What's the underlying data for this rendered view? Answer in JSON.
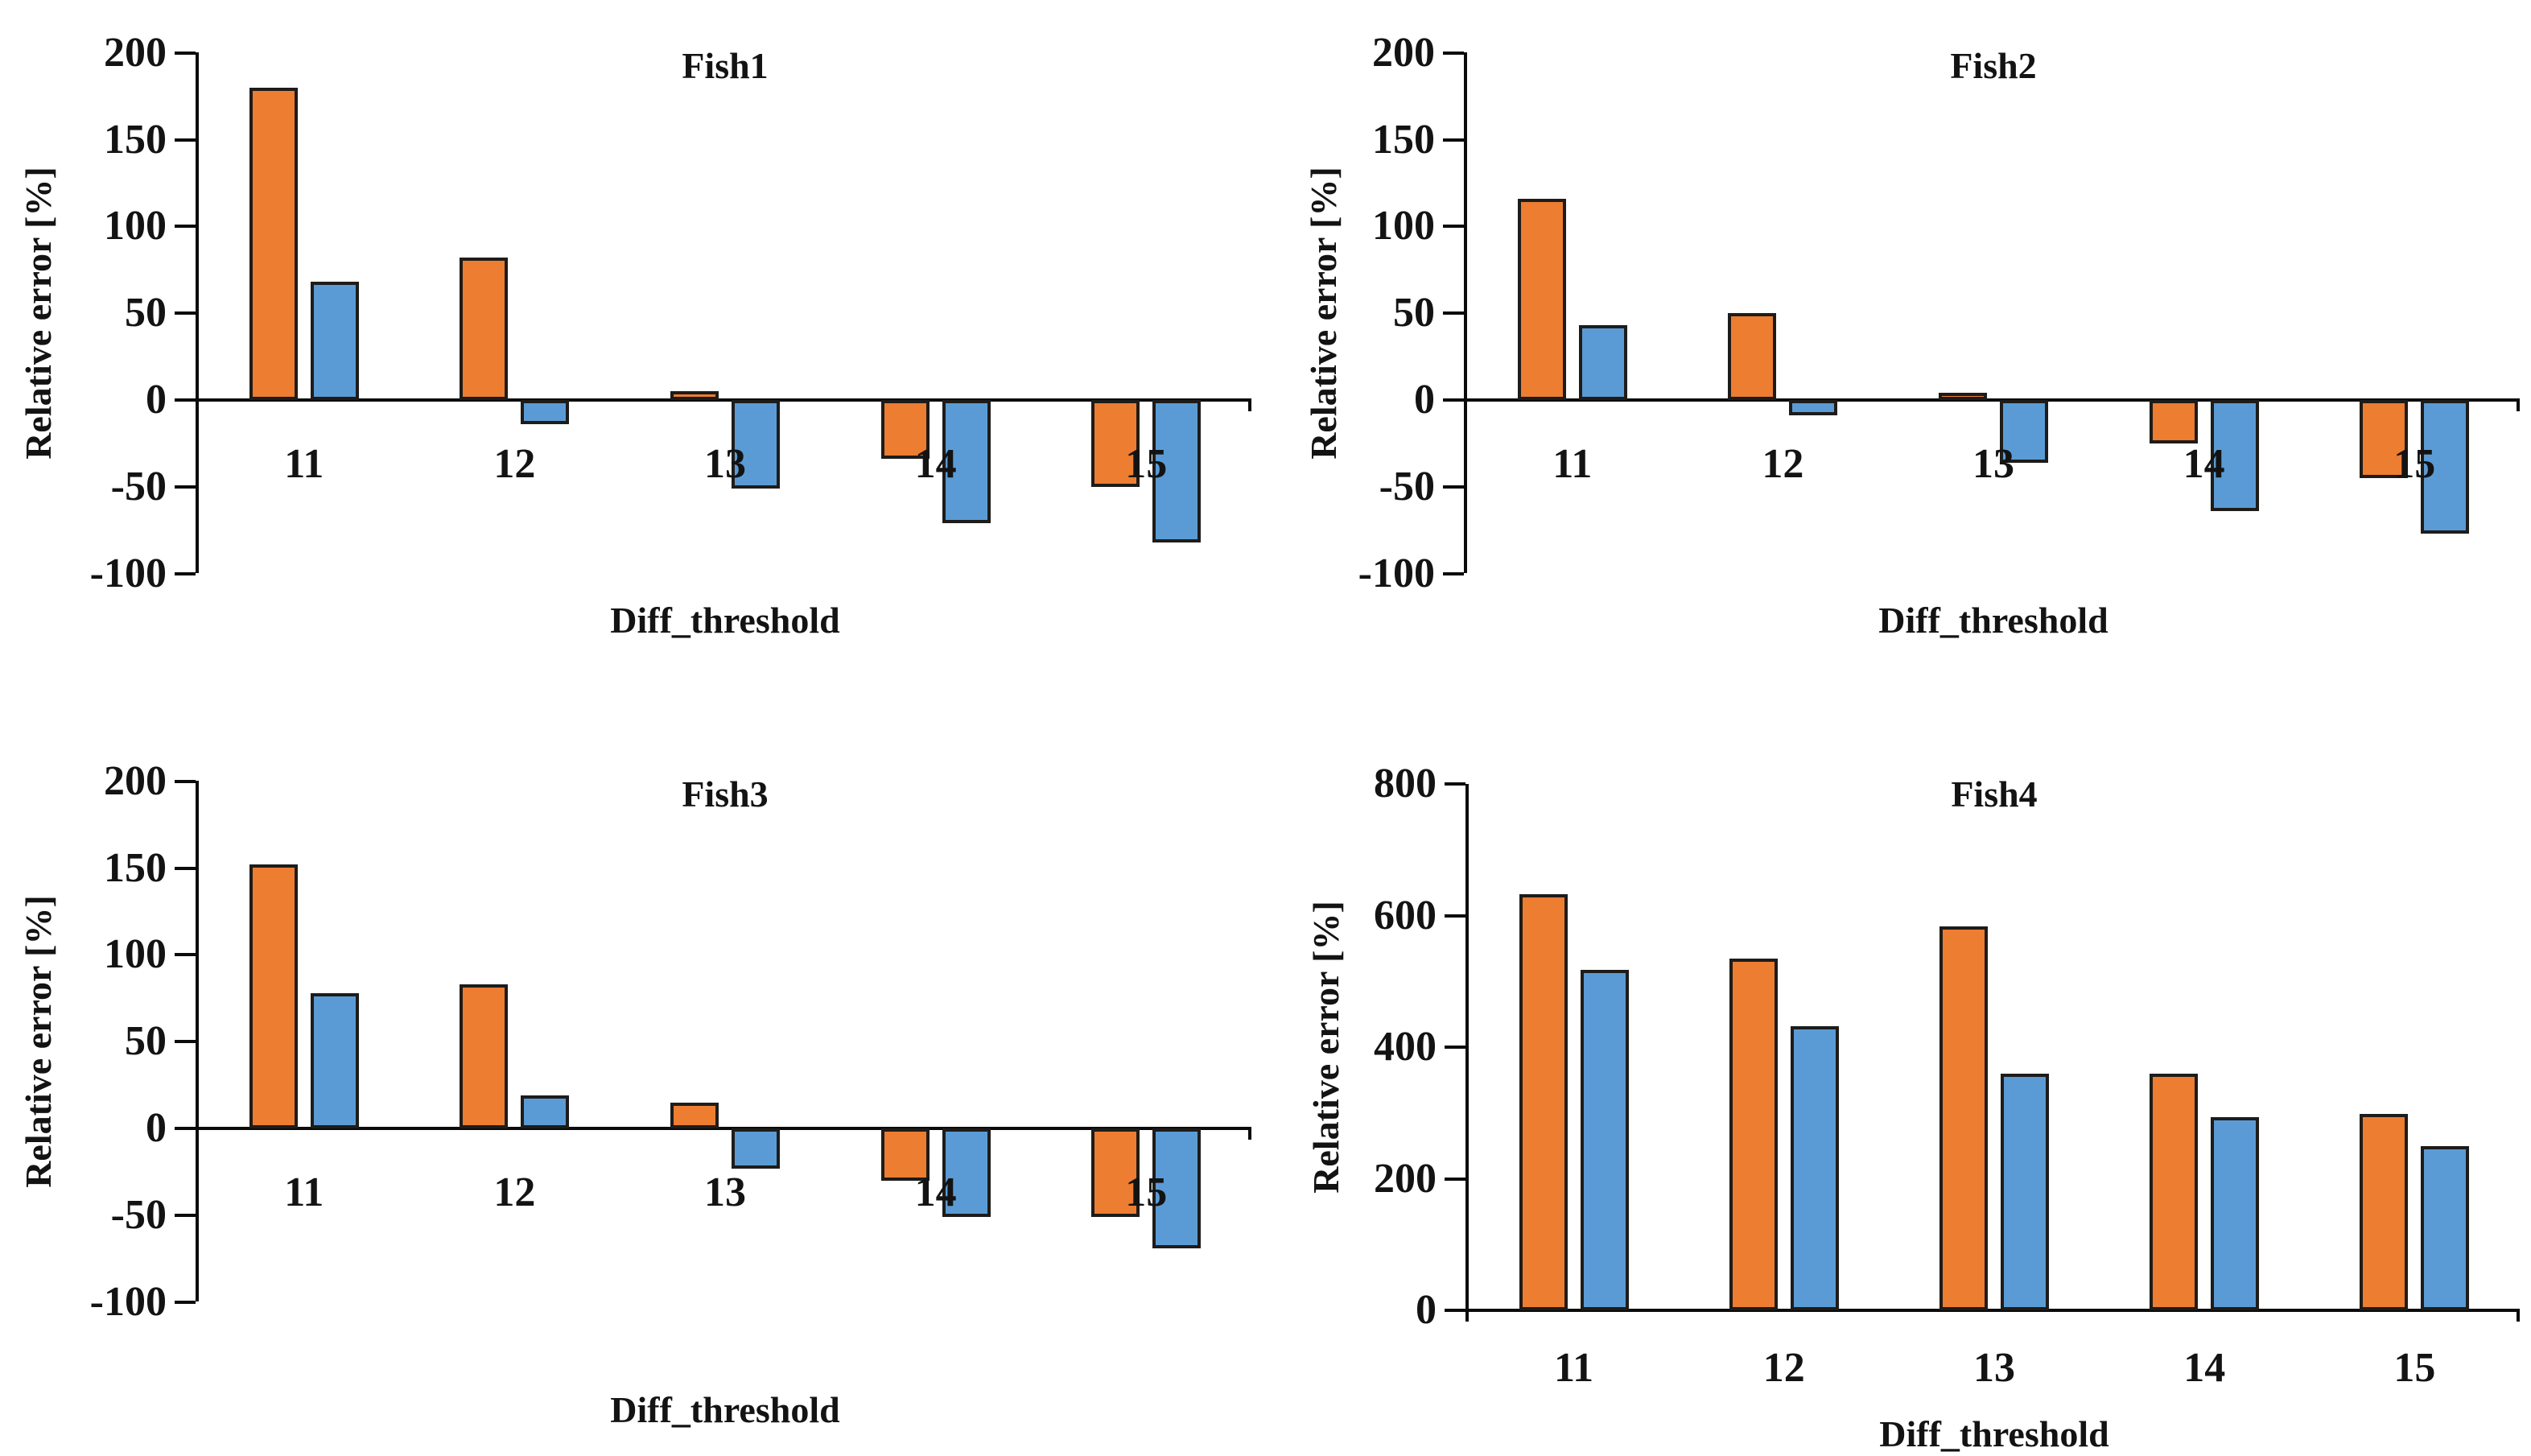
{
  "figure": {
    "background": "#ffffff",
    "description_layout": "2x2 grid of bar charts",
    "axis_color": "#0b0b0b",
    "text_color": "#131313",
    "bar_border_color": "#1e1c1a"
  },
  "chart_data": [
    {
      "type": "bar",
      "title": "Fish1",
      "xlabel": "Diff_threshold",
      "ylabel": "Relative error [%]",
      "categories": [
        "11",
        "12",
        "13",
        "14",
        "15"
      ],
      "series": [
        {
          "name": "orange",
          "color": "#ED7D31",
          "values": [
            180,
            82,
            5,
            -34,
            -50
          ]
        },
        {
          "name": "blue",
          "color": "#5B9BD5",
          "values": [
            68,
            -14,
            -51,
            -71,
            -82
          ]
        }
      ],
      "ylim": [
        -100,
        200
      ],
      "yticks": [
        200,
        150,
        100,
        50,
        0,
        -50,
        -100
      ],
      "legend": "none",
      "grid": false
    },
    {
      "type": "bar",
      "title": "Fish2",
      "xlabel": "Diff_threshold",
      "ylabel": "Relative error [%]",
      "categories": [
        "11",
        "12",
        "13",
        "14",
        "15"
      ],
      "series": [
        {
          "name": "orange",
          "color": "#ED7D31",
          "values": [
            116,
            50,
            2,
            -25,
            -45
          ]
        },
        {
          "name": "blue",
          "color": "#5B9BD5",
          "values": [
            43,
            -9,
            -36,
            -64,
            -77
          ]
        }
      ],
      "ylim": [
        -100,
        200
      ],
      "yticks": [
        200,
        150,
        100,
        50,
        0,
        -50,
        -100
      ],
      "legend": "none",
      "grid": false
    },
    {
      "type": "bar",
      "title": "Fish3",
      "xlabel": "Diff_threshold",
      "ylabel": "Relative error [%]",
      "categories": [
        "11",
        "12",
        "13",
        "14",
        "15"
      ],
      "series": [
        {
          "name": "orange",
          "color": "#ED7D31",
          "values": [
            152,
            83,
            15,
            -30,
            -51
          ]
        },
        {
          "name": "blue",
          "color": "#5B9BD5",
          "values": [
            78,
            19,
            -23,
            -51,
            -69
          ]
        }
      ],
      "ylim": [
        -100,
        200
      ],
      "yticks": [
        200,
        150,
        100,
        50,
        0,
        -50,
        -100
      ],
      "legend": "none",
      "grid": false
    },
    {
      "type": "bar",
      "title": "Fish4",
      "xlabel": "Diff_threshold",
      "ylabel": "Relative error [%]",
      "categories": [
        "11",
        "12",
        "13",
        "14",
        "15"
      ],
      "series": [
        {
          "name": "orange",
          "color": "#ED7D31",
          "values": [
            633,
            534,
            583,
            360,
            298
          ]
        },
        {
          "name": "blue",
          "color": "#5B9BD5",
          "values": [
            517,
            432,
            360,
            293,
            250
          ]
        }
      ],
      "ylim": [
        0,
        800
      ],
      "yticks": [
        800,
        600,
        400,
        200,
        0
      ],
      "legend": "none",
      "grid": false
    }
  ]
}
